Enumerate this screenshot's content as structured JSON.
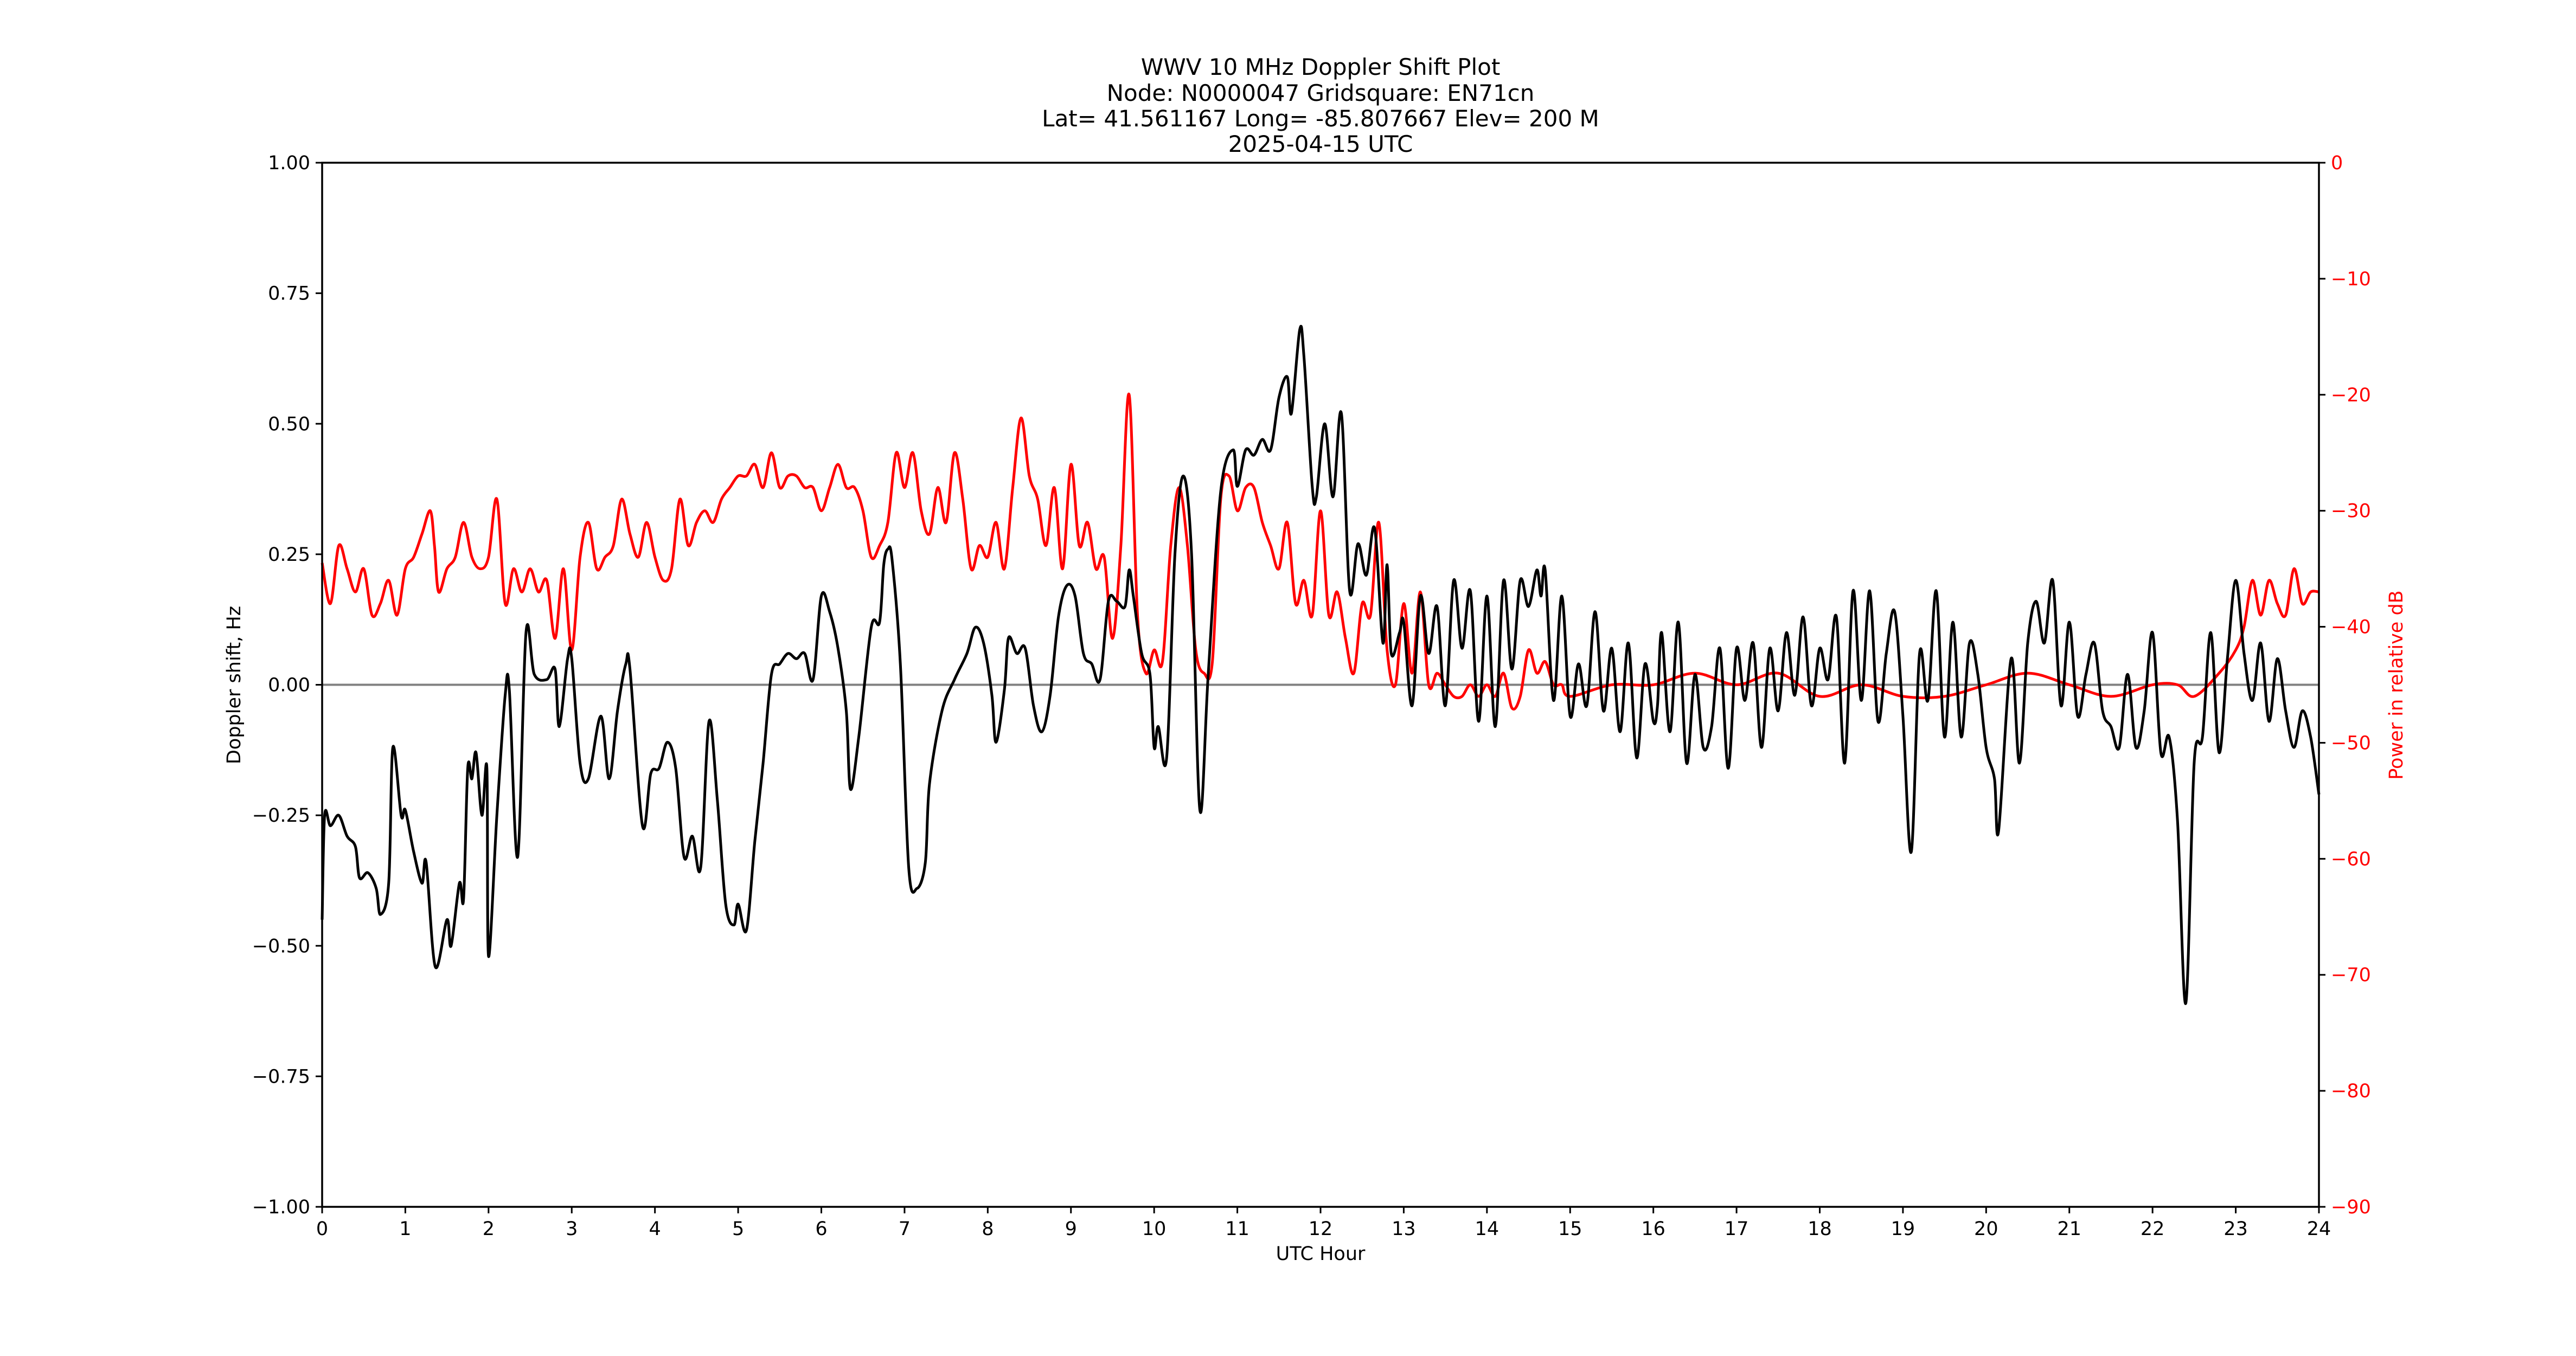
{
  "chart_data": {
    "type": "line",
    "title_lines": [
      "WWV 10 MHz Doppler Shift Plot",
      "Node:  N0000047     Gridsquare:  EN71cn",
      "Lat= 41.561167    Long= -85.807667    Elev= 200 M",
      "2025-04-15  UTC"
    ],
    "xlabel": "UTC Hour",
    "ylabel": "Doppler shift, Hz",
    "y2label": "Power in relative dB",
    "xlim": [
      0,
      24
    ],
    "ylim": [
      -1.0,
      1.0
    ],
    "y2lim": [
      -90,
      0
    ],
    "x_ticks": [
      0,
      1,
      2,
      3,
      4,
      5,
      6,
      7,
      8,
      9,
      10,
      11,
      12,
      13,
      14,
      15,
      16,
      17,
      18,
      19,
      20,
      21,
      22,
      23,
      24
    ],
    "x_tick_labels": [
      "0",
      "1",
      "2",
      "3",
      "4",
      "5",
      "6",
      "7",
      "8",
      "9",
      "10",
      "11",
      "12",
      "13",
      "14",
      "15",
      "16",
      "17",
      "18",
      "19",
      "20",
      "21",
      "22",
      "23",
      "24"
    ],
    "y_ticks": [
      1.0,
      0.75,
      0.5,
      0.25,
      0.0,
      -0.25,
      -0.5,
      -0.75,
      -1.0
    ],
    "y_tick_labels": [
      "1.00",
      "0.75",
      "0.50",
      "0.25",
      "0.00",
      "−0.25",
      "−0.50",
      "−0.75",
      "−1.00"
    ],
    "y2_ticks": [
      0,
      -10,
      -20,
      -30,
      -40,
      -50,
      -60,
      -70,
      -80,
      -90
    ],
    "y2_tick_labels": [
      "0",
      "−10",
      "−20",
      "−30",
      "−40",
      "−50",
      "−60",
      "−70",
      "−80",
      "−90"
    ],
    "zero_line": 0.0,
    "grid": false,
    "colors": {
      "doppler": "#000000",
      "power": "#ff0000",
      "zero_line": "#808080",
      "y2_axis": "#ff0000"
    },
    "series": [
      {
        "axis": "left",
        "color": "#000000",
        "x": [
          0,
          0.03,
          0.1,
          0.2,
          0.3,
          0.4,
          0.45,
          0.55,
          0.65,
          0.7,
          0.8,
          0.85,
          0.95,
          1.0,
          1.1,
          1.2,
          1.25,
          1.36,
          1.5,
          1.55,
          1.65,
          1.7,
          1.75,
          1.8,
          1.85,
          1.92,
          1.98,
          2.0,
          2.1,
          2.2,
          2.25,
          2.35,
          2.45,
          2.55,
          2.7,
          2.8,
          2.85,
          2.95,
          3.0,
          3.1,
          3.2,
          3.35,
          3.45,
          3.55,
          3.65,
          3.7,
          3.85,
          3.95,
          4.05,
          4.15,
          4.25,
          4.35,
          4.45,
          4.55,
          4.65,
          4.75,
          4.85,
          4.95,
          5.0,
          5.1,
          5.2,
          5.3,
          5.4,
          5.5,
          5.6,
          5.7,
          5.8,
          5.9,
          6.0,
          6.1,
          6.2,
          6.3,
          6.35,
          6.45,
          6.6,
          6.7,
          6.75,
          6.8,
          6.85,
          6.95,
          7.05,
          7.15,
          7.25,
          7.3,
          7.45,
          7.6,
          7.75,
          7.85,
          7.95,
          8.05,
          8.1,
          8.2,
          8.25,
          8.35,
          8.45,
          8.55,
          8.65,
          8.75,
          8.85,
          8.95,
          9.05,
          9.15,
          9.25,
          9.35,
          9.45,
          9.55,
          9.65,
          9.7,
          9.75,
          9.85,
          9.95,
          10.0,
          10.05,
          10.15,
          10.25,
          10.35,
          10.45,
          10.55,
          10.65,
          10.8,
          10.95,
          11.0,
          11.1,
          11.2,
          11.3,
          11.4,
          11.5,
          11.6,
          11.65,
          11.75,
          11.8,
          11.9,
          11.95,
          12.05,
          12.15,
          12.25,
          12.35,
          12.45,
          12.55,
          12.65,
          12.75,
          12.8,
          12.85,
          12.95,
          13.0,
          13.1,
          13.2,
          13.3,
          13.4,
          13.5,
          13.6,
          13.7,
          13.8,
          13.9,
          14.0,
          14.1,
          14.2,
          14.3,
          14.4,
          14.5,
          14.6,
          14.65,
          14.7,
          14.8,
          14.9,
          15.0,
          15.1,
          15.2,
          15.3,
          15.4,
          15.5,
          15.6,
          15.7,
          15.8,
          15.9,
          16.0,
          16.05,
          16.1,
          16.2,
          16.3,
          16.4,
          16.5,
          16.6,
          16.7,
          16.8,
          16.9,
          17.0,
          17.1,
          17.2,
          17.3,
          17.4,
          17.5,
          17.6,
          17.7,
          17.8,
          17.9,
          18.0,
          18.1,
          18.2,
          18.3,
          18.4,
          18.5,
          18.6,
          18.7,
          18.8,
          18.9,
          19.0,
          19.1,
          19.2,
          19.3,
          19.4,
          19.5,
          19.6,
          19.7,
          19.8,
          19.9,
          20.0,
          20.1,
          20.15,
          20.3,
          20.4,
          20.5,
          20.6,
          20.7,
          20.8,
          20.9,
          21.0,
          21.1,
          21.2,
          21.3,
          21.4,
          21.5,
          21.6,
          21.7,
          21.8,
          21.9,
          22.0,
          22.1,
          22.2,
          22.3,
          22.4,
          22.5,
          22.6,
          22.7,
          22.8,
          22.9,
          23.0,
          23.1,
          23.2,
          23.3,
          23.4,
          23.5,
          23.6,
          23.7,
          23.8,
          23.9,
          24.0
        ],
        "y": [
          -0.45,
          -0.25,
          -0.27,
          -0.25,
          -0.29,
          -0.31,
          -0.37,
          -0.36,
          -0.39,
          -0.44,
          -0.38,
          -0.12,
          -0.25,
          -0.24,
          -0.32,
          -0.38,
          -0.34,
          -0.54,
          -0.45,
          -0.5,
          -0.38,
          -0.41,
          -0.16,
          -0.18,
          -0.13,
          -0.25,
          -0.16,
          -0.52,
          -0.25,
          -0.02,
          -0.01,
          -0.33,
          0.1,
          0.02,
          0.01,
          0.03,
          -0.08,
          0.05,
          0.05,
          -0.15,
          -0.18,
          -0.06,
          -0.18,
          -0.05,
          0.04,
          0.03,
          -0.27,
          -0.17,
          -0.16,
          -0.11,
          -0.16,
          -0.33,
          -0.29,
          -0.35,
          -0.07,
          -0.22,
          -0.42,
          -0.46,
          -0.42,
          -0.47,
          -0.3,
          -0.15,
          0.02,
          0.04,
          0.06,
          0.05,
          0.06,
          0.01,
          0.17,
          0.14,
          0.07,
          -0.05,
          -0.2,
          -0.1,
          0.11,
          0.12,
          0.23,
          0.26,
          0.24,
          0.04,
          -0.35,
          -0.39,
          -0.34,
          -0.19,
          -0.05,
          0.01,
          0.06,
          0.11,
          0.08,
          -0.02,
          -0.11,
          -0.01,
          0.09,
          0.06,
          0.07,
          -0.04,
          -0.09,
          -0.02,
          0.13,
          0.19,
          0.17,
          0.06,
          0.04,
          0.01,
          0.16,
          0.16,
          0.15,
          0.22,
          0.17,
          0.06,
          0.02,
          -0.12,
          -0.08,
          -0.14,
          0.25,
          0.4,
          0.25,
          -0.24,
          0.02,
          0.37,
          0.45,
          0.38,
          0.45,
          0.44,
          0.47,
          0.45,
          0.55,
          0.59,
          0.52,
          0.68,
          0.63,
          0.38,
          0.36,
          0.5,
          0.36,
          0.52,
          0.18,
          0.27,
          0.21,
          0.3,
          0.08,
          0.23,
          0.06,
          0.1,
          0.12,
          -0.04,
          0.17,
          0.06,
          0.15,
          -0.04,
          0.2,
          0.07,
          0.18,
          -0.07,
          0.17,
          -0.08,
          0.2,
          0.03,
          0.2,
          0.15,
          0.22,
          0.17,
          0.22,
          -0.03,
          0.17,
          -0.06,
          0.04,
          -0.04,
          0.14,
          -0.05,
          0.07,
          -0.09,
          0.08,
          -0.14,
          0.04,
          -0.07,
          -0.04,
          0.1,
          -0.09,
          0.12,
          -0.15,
          0.02,
          -0.12,
          -0.08,
          0.07,
          -0.16,
          0.07,
          -0.03,
          0.08,
          -0.12,
          0.07,
          -0.05,
          0.1,
          -0.02,
          0.13,
          -0.04,
          0.07,
          0.01,
          0.13,
          -0.15,
          0.18,
          -0.03,
          0.18,
          -0.07,
          0.06,
          0.14,
          -0.06,
          -0.32,
          0.06,
          -0.03,
          0.18,
          -0.1,
          0.12,
          -0.1,
          0.08,
          0.02,
          -0.12,
          -0.18,
          -0.28,
          0.05,
          -0.15,
          0.08,
          0.16,
          0.08,
          0.2,
          -0.04,
          0.12,
          -0.06,
          0.02,
          0.08,
          -0.05,
          -0.08,
          -0.12,
          0.02,
          -0.12,
          -0.05,
          0.1,
          -0.13,
          -0.1,
          -0.26,
          -0.61,
          -0.15,
          -0.1,
          0.1,
          -0.13,
          0.05,
          0.2,
          0.06,
          -0.03,
          0.08,
          -0.07,
          0.05,
          -0.05,
          -0.12,
          -0.05,
          -0.1,
          -0.21
        ]
      },
      {
        "axis": "right",
        "color": "#ff0000",
        "x": [
          0,
          0.1,
          0.2,
          0.3,
          0.4,
          0.5,
          0.6,
          0.7,
          0.8,
          0.9,
          1.0,
          1.1,
          1.2,
          1.3,
          1.35,
          1.4,
          1.5,
          1.6,
          1.7,
          1.8,
          1.9,
          2.0,
          2.1,
          2.2,
          2.3,
          2.4,
          2.5,
          2.6,
          2.7,
          2.8,
          2.9,
          3.0,
          3.1,
          3.2,
          3.3,
          3.4,
          3.5,
          3.6,
          3.7,
          3.8,
          3.9,
          4.0,
          4.1,
          4.2,
          4.3,
          4.4,
          4.5,
          4.6,
          4.7,
          4.8,
          4.9,
          5.0,
          5.1,
          5.2,
          5.3,
          5.4,
          5.5,
          5.6,
          5.7,
          5.8,
          5.9,
          6.0,
          6.1,
          6.2,
          6.3,
          6.4,
          6.5,
          6.6,
          6.7,
          6.8,
          6.9,
          7.0,
          7.1,
          7.2,
          7.3,
          7.4,
          7.5,
          7.6,
          7.7,
          7.8,
          7.9,
          8.0,
          8.1,
          8.2,
          8.3,
          8.4,
          8.5,
          8.6,
          8.7,
          8.8,
          8.9,
          9.0,
          9.1,
          9.2,
          9.3,
          9.4,
          9.5,
          9.6,
          9.7,
          9.8,
          9.9,
          10.0,
          10.1,
          10.2,
          10.3,
          10.4,
          10.5,
          10.6,
          10.7,
          10.8,
          10.9,
          11.0,
          11.1,
          11.2,
          11.3,
          11.4,
          11.5,
          11.6,
          11.7,
          11.8,
          11.9,
          12.0,
          12.1,
          12.2,
          12.3,
          12.4,
          12.5,
          12.6,
          12.7,
          12.8,
          12.9,
          13.0,
          13.1,
          13.2,
          13.3,
          13.4,
          13.5,
          13.6,
          13.7,
          13.8,
          13.9,
          14.0,
          14.1,
          14.2,
          14.3,
          14.4,
          14.5,
          14.6,
          14.7,
          14.8,
          14.9,
          15.0,
          15.5,
          16.0,
          16.5,
          17.0,
          17.5,
          18.0,
          18.5,
          19.0,
          19.5,
          20.0,
          20.5,
          21.0,
          21.5,
          22.0,
          22.3,
          22.5,
          22.8,
          23.0,
          23.1,
          23.2,
          23.3,
          23.4,
          23.5,
          23.6,
          23.7,
          23.8,
          23.9,
          24.0
        ],
        "y": [
          -34.5,
          -38,
          -33,
          -35,
          -37,
          -35,
          -39,
          -38,
          -36,
          -39,
          -35,
          -34,
          -32,
          -30,
          -33,
          -37,
          -35,
          -34,
          -31,
          -34,
          -35,
          -34,
          -29,
          -38,
          -35,
          -37,
          -35,
          -37,
          -36,
          -41,
          -35,
          -42,
          -34,
          -31,
          -35,
          -34,
          -33,
          -29,
          -32,
          -34,
          -31,
          -34,
          -36,
          -35,
          -29,
          -33,
          -31,
          -30,
          -31,
          -29,
          -28,
          -27,
          -27,
          -26,
          -28,
          -25,
          -28,
          -27,
          -27,
          -28,
          -28,
          -30,
          -28,
          -26,
          -28,
          -28,
          -30,
          -34,
          -33,
          -31,
          -25,
          -28,
          -25,
          -30,
          -32,
          -28,
          -31,
          -25,
          -29,
          -35,
          -33,
          -34,
          -31,
          -35,
          -28,
          -22,
          -27,
          -29,
          -33,
          -28,
          -35,
          -26,
          -33,
          -31,
          -35,
          -34,
          -41,
          -33,
          -20,
          -39,
          -44,
          -42,
          -43,
          -33,
          -28,
          -33,
          -42,
          -44,
          -43,
          -29,
          -27,
          -30,
          -28,
          -28,
          -31,
          -33,
          -35,
          -31,
          -38,
          -36,
          -39,
          -30,
          -39,
          -37,
          -41,
          -44,
          -38,
          -39,
          -31,
          -42,
          -45,
          -38,
          -44,
          -37,
          -45,
          -44,
          -45,
          -46,
          -46,
          -45,
          -46,
          -45,
          -46,
          -44,
          -47,
          -46,
          -42,
          -44,
          -43,
          -45,
          -45,
          -46,
          -45,
          -45,
          -44,
          -45,
          -44,
          -46,
          -45,
          -46,
          -46,
          -45,
          -44,
          -45,
          -46,
          -45,
          -45,
          -46,
          -44,
          -42,
          -40,
          -36,
          -39,
          -36,
          -38,
          -39,
          -35,
          -38,
          -37,
          -37
        ]
      }
    ]
  }
}
